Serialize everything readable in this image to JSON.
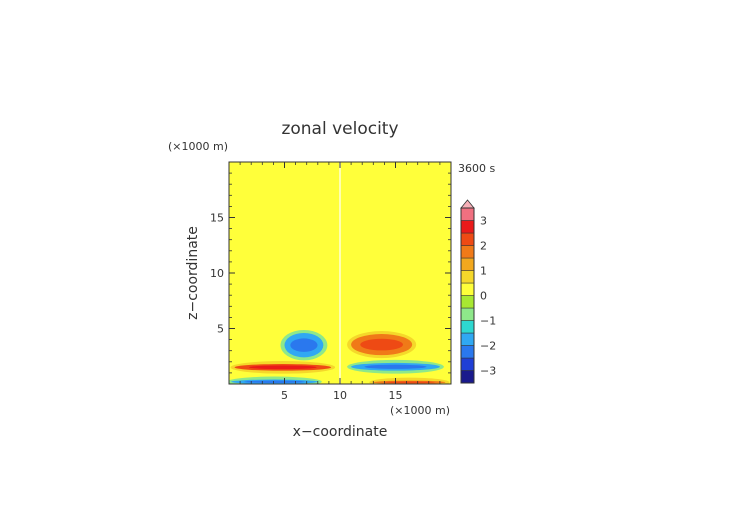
{
  "chart_data": {
    "type": "heatmap",
    "title": "zonal velocity",
    "time_label": "3600 s",
    "xlabel": "x−coordinate",
    "ylabel": "z−coordinate",
    "x_unit": "(×1000 m)",
    "y_unit": "(×1000 m)",
    "xlim": [
      0,
      20
    ],
    "ylim": [
      0,
      20
    ],
    "x_ticks": [
      5,
      10,
      15
    ],
    "y_ticks": [
      5,
      10,
      15
    ],
    "x_tick_labels": [
      "5",
      "10",
      "15"
    ],
    "y_tick_labels": [
      "5",
      "10",
      "15"
    ],
    "colorbar": {
      "levels": [
        -3.5,
        -3,
        -2.5,
        -2,
        -1.5,
        -1,
        -0.5,
        0,
        0.5,
        1,
        1.5,
        2,
        2.5,
        3,
        3.5
      ],
      "tick_values": [
        -3,
        -2,
        -1,
        0,
        1,
        2,
        3
      ],
      "tick_labels": [
        "−3",
        "−2",
        "−1",
        "0",
        "1",
        "2",
        "3"
      ],
      "colors": [
        "#1a1a8c",
        "#1f3fd6",
        "#2a78ee",
        "#30a8f2",
        "#2ed8d0",
        "#8ee88a",
        "#a8e832",
        "#ffff3a",
        "#f5d82a",
        "#f2a81e",
        "#f07a18",
        "#ee4a14",
        "#ea1a1a",
        "#f07080",
        "#f7b0b8"
      ],
      "extend": "max"
    },
    "regions": [
      {
        "kind": "band",
        "z": [
          0.4,
          1.9
        ],
        "value": 0.2
      },
      {
        "kind": "band",
        "z": [
          2.8,
          3.5
        ],
        "value": 0.2
      },
      {
        "kind": "band",
        "z": [
          4.9,
          6.5
        ],
        "value": 0.2
      },
      {
        "kind": "band",
        "z": [
          7.3,
          8.7
        ],
        "value": 0.2
      },
      {
        "kind": "band",
        "z": [
          10.5,
          11.8
        ],
        "value": 0.2
      },
      {
        "kind": "band",
        "z": [
          13.2,
          14.9
        ],
        "value": 0.2
      },
      {
        "kind": "band",
        "z": [
          16.2,
          17.5
        ],
        "value": 0.2
      },
      {
        "kind": "band",
        "z": [
          18.4,
          19.3
        ],
        "value": 0.2
      },
      {
        "kind": "blob",
        "x": [
          0.5,
          9.2
        ],
        "z": [
          1.2,
          1.8
        ],
        "value": 2.0
      },
      {
        "kind": "blob",
        "x": [
          5.0,
          8.5
        ],
        "z": [
          2.4,
          4.6
        ],
        "value": -1.8
      },
      {
        "kind": "blob",
        "x": [
          0.2,
          8.0
        ],
        "z": [
          0.0,
          0.4
        ],
        "value": -2.0
      },
      {
        "kind": "blob",
        "x": [
          11.0,
          19.0
        ],
        "z": [
          1.2,
          1.9
        ],
        "value": -2.0
      },
      {
        "kind": "blob",
        "x": [
          11.0,
          16.5
        ],
        "z": [
          2.6,
          4.5
        ],
        "value": 1.8
      },
      {
        "kind": "blob",
        "x": [
          13.0,
          19.5
        ],
        "z": [
          0.0,
          0.3
        ],
        "value": 1.5
      }
    ]
  }
}
